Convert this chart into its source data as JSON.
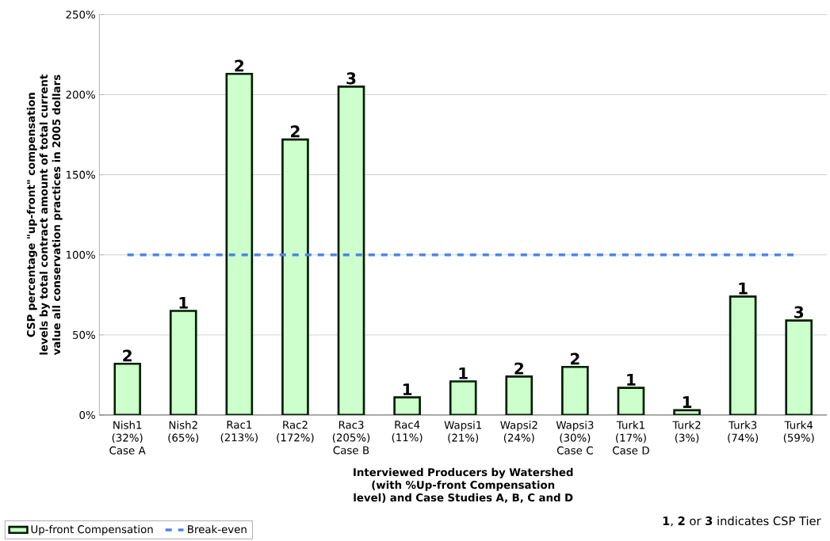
{
  "chart_data": {
    "type": "bar",
    "ylabel": "CSP percentage \"up-front\" compensation levels by total contract amount of total current value all conservation practices in 2005 dollars",
    "xlabel": "Interviewed Producers by Watershed (with %Up-front Compensation level) and Case Studies A, B, C and D",
    "categories": [
      "Nish1 (32%) Case A",
      "Nish2 (65%)",
      "Rac1 (213%)",
      "Rac2 (172%)",
      "Rac3 (205%) Case B",
      "Rac4 (11%)",
      "Wapsi1 (21%)",
      "Wapsi2 (24%)",
      "Wapsi3 (30%) Case C",
      "Turk1 (17%) Case D",
      "Turk2 (3%)",
      "Turk3 (74%)",
      "Turk4 (59%)"
    ],
    "series": [
      {
        "name": "Up-front Compensation",
        "color": "#ccffcc",
        "values": [
          32,
          65,
          213,
          172,
          205,
          11,
          21,
          24,
          30,
          17,
          3,
          74,
          59
        ]
      }
    ],
    "ylim": [
      0,
      250
    ],
    "yticks": [
      {
        "value": 0,
        "label": "0%"
      },
      {
        "value": 50,
        "label": "50%"
      },
      {
        "value": 100,
        "label": "100%"
      },
      {
        "value": 150,
        "label": "150%"
      },
      {
        "value": 200,
        "label": "200%"
      },
      {
        "value": 250,
        "label": "250%"
      }
    ],
    "ref_lines": [
      {
        "axis": "y",
        "value": 100,
        "label": "Break-even",
        "color": "#4a86e8",
        "line_style": "dashed"
      }
    ],
    "annotations": [
      "**1**, **2** or **3** indicates CSP Tier",
      {
        "text": "2",
        "x": "Nish1 (32%) Case A",
        "y": 32
      },
      {
        "text": "1",
        "x": "Nish2 (65%)",
        "y": 65
      },
      {
        "text": "2",
        "x": "Rac1 (213%)",
        "y": 213
      },
      {
        "text": "2",
        "x": "Rac2 (172%)",
        "y": 172
      },
      {
        "text": "3",
        "x": "Rac3 (205%) Case B",
        "y": 205
      },
      {
        "text": "1",
        "x": "Rac4 (11%)",
        "y": 11
      },
      {
        "text": "1",
        "x": "Wapsi1 (21%)",
        "y": 21
      },
      {
        "text": "2",
        "x": "Wapsi2 (24%)",
        "y": 24
      },
      {
        "text": "2",
        "x": "Wapsi3 (30%) Case C",
        "y": 30
      },
      {
        "text": "1",
        "x": "Turk1 (17%) Case D",
        "y": 17
      },
      {
        "text": "1",
        "x": "Turk2 (3%)",
        "y": 3
      },
      {
        "text": "1",
        "x": "Turk3 (74%)",
        "y": 74
      },
      {
        "text": "3",
        "x": "Turk4 (59%)",
        "y": 59
      }
    ],
    "grid": "y",
    "legend": "bottom left"
  }
}
